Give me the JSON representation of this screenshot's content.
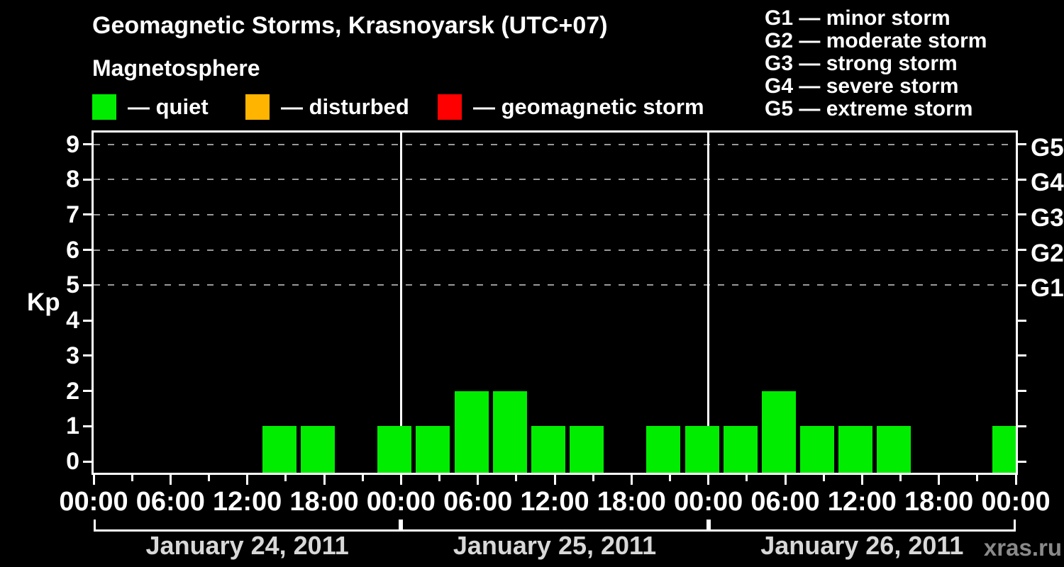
{
  "title": "Geomagnetic Storms, Krasnoyarsk (UTC+07)",
  "subtitle": "Magnetosphere",
  "legend": [
    {
      "label": "quiet",
      "color": "#00ed00"
    },
    {
      "label": "disturbed",
      "color": "#ffb400"
    },
    {
      "label": "geomagnetic storm",
      "color": "#ff0000"
    }
  ],
  "storm_scale": [
    {
      "code": "G1",
      "desc": "minor storm"
    },
    {
      "code": "G2",
      "desc": "moderate storm"
    },
    {
      "code": "G3",
      "desc": "strong storm"
    },
    {
      "code": "G4",
      "desc": "severe storm"
    },
    {
      "code": "G5",
      "desc": "extreme storm"
    }
  ],
  "watermark": "xras.ru",
  "chart_data": {
    "type": "bar",
    "title": "Geomagnetic Storms, Krasnoyarsk (UTC+07)",
    "ylabel": "Kp",
    "y_ticks": [
      0,
      1,
      2,
      3,
      4,
      5,
      6,
      7,
      8,
      9
    ],
    "ylim": [
      -0.33,
      9.33
    ],
    "grid_levels": [
      5,
      6,
      7,
      8,
      9
    ],
    "grid_style": "dashed",
    "right_axis_labels": [
      {
        "value": 5,
        "label": "G1"
      },
      {
        "value": 6,
        "label": "G2"
      },
      {
        "value": 7,
        "label": "G3"
      },
      {
        "value": 8,
        "label": "G4"
      },
      {
        "value": 9,
        "label": "G5"
      }
    ],
    "interval_hours": 3,
    "x_major_tick_hours": 6,
    "x_tick_labels": [
      "00:00",
      "06:00",
      "12:00",
      "18:00",
      "00:00",
      "06:00",
      "12:00",
      "18:00",
      "00:00",
      "06:00",
      "12:00",
      "18:00",
      "00:00"
    ],
    "bar_color": "#00ed00",
    "days": [
      {
        "date": "January 24, 2011",
        "kp_values": [
          0,
          0,
          0,
          0,
          1,
          1,
          0,
          1
        ]
      },
      {
        "date": "January 25, 2011",
        "kp_values": [
          1,
          2,
          2,
          1,
          1,
          0,
          1,
          1
        ]
      },
      {
        "date": "January 26, 2011",
        "kp_values": [
          1,
          2,
          1,
          1,
          1,
          0,
          0,
          1
        ]
      }
    ]
  }
}
